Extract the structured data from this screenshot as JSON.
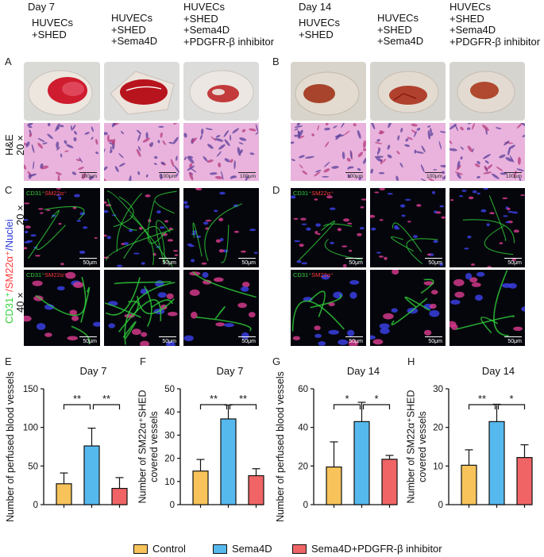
{
  "headers": {
    "day7": "Day 7",
    "day14": "Day 14",
    "day7_cols": [
      "HUVECs\n+SHED",
      "HUVECs\n+SHED\n+Sema4D",
      "HUVECs\n+SHED\n+Sema4D\n+PDGFR-β inhibitor"
    ],
    "day14_cols": [
      "HUVECs\n+SHED",
      "HUVECs\n+SHED\n+Sema4D",
      "HUVECs\n+SHED\n+Sema4D\n+PDGFR-β inhibitor"
    ]
  },
  "panel_labels": [
    "A",
    "B",
    "C",
    "D",
    "E",
    "F",
    "G",
    "H"
  ],
  "row_labels": {
    "he_a": "H&E",
    "he_b": "20 ×",
    "fluor_main_green": "CD31⁺",
    "fluor_main_red": "/SM22α⁺",
    "fluor_main_blue": "/Nuclei",
    "fluor_20x": "20 ×",
    "fluor_40x": "40 ×"
  },
  "image_tags": {
    "cd31": "CD31⁺",
    "sm22": "SM22α⁺"
  },
  "scale_he": "100μm",
  "scale_fl": "50μm",
  "colors": {
    "control": "#f7c35a",
    "sema4d": "#56b9ee",
    "inhibitor": "#f06466",
    "green": "#35d13a",
    "red": "#ff3b3b",
    "blue": "#2a3bd8"
  },
  "chart_data": [
    {
      "type": "bar",
      "panel": "E",
      "title": "Day 7",
      "ylabel": "Number of perfused blood vessels",
      "categories": [
        "Control",
        "Sema4D",
        "Sema4D+PDGFR-β inhibitor"
      ],
      "values": [
        27,
        76,
        21
      ],
      "errors": [
        14,
        23,
        14
      ],
      "ylim": [
        0,
        150
      ],
      "yticks": [
        0,
        50,
        100,
        150
      ],
      "significance": [
        "**",
        "**"
      ]
    },
    {
      "type": "bar",
      "panel": "F",
      "title": "Day 7",
      "ylabel": "Number of  SM22α⁺SHED covered vessels",
      "categories": [
        "Control",
        "Sema4D",
        "Sema4D+PDGFR-β inhibitor"
      ],
      "values": [
        14.5,
        37,
        12.5
      ],
      "errors": [
        5,
        6,
        3
      ],
      "ylim": [
        0,
        50
      ],
      "yticks": [
        0,
        10,
        20,
        30,
        40,
        50
      ],
      "significance": [
        "**",
        "**"
      ]
    },
    {
      "type": "bar",
      "panel": "G",
      "title": "Day 14",
      "ylabel": "Number of perfused blood vessels",
      "categories": [
        "Control",
        "Sema4D",
        "Sema4D+PDGFR-β inhibitor"
      ],
      "values": [
        19.5,
        43,
        23.5
      ],
      "errors": [
        13,
        10,
        2
      ],
      "ylim": [
        0,
        60
      ],
      "yticks": [
        0,
        20,
        40,
        60
      ],
      "significance": [
        "*",
        "*"
      ]
    },
    {
      "type": "bar",
      "panel": "H",
      "title": "Day 14",
      "ylabel": "Number of  SM22α⁺SHED covered vessels",
      "categories": [
        "Control",
        "Sema4D",
        "Sema4D+PDGFR-β inhibitor"
      ],
      "values": [
        10.2,
        21.5,
        12.2
      ],
      "errors": [
        4,
        4.5,
        3.3
      ],
      "ylim": [
        0,
        30
      ],
      "yticks": [
        0,
        10,
        20,
        30
      ],
      "significance": [
        "**",
        "*"
      ]
    }
  ],
  "legend": {
    "control": "Control",
    "sema4d": "Sema4D",
    "inhibitor": "Sema4D+PDGFR-β inhibitor"
  }
}
